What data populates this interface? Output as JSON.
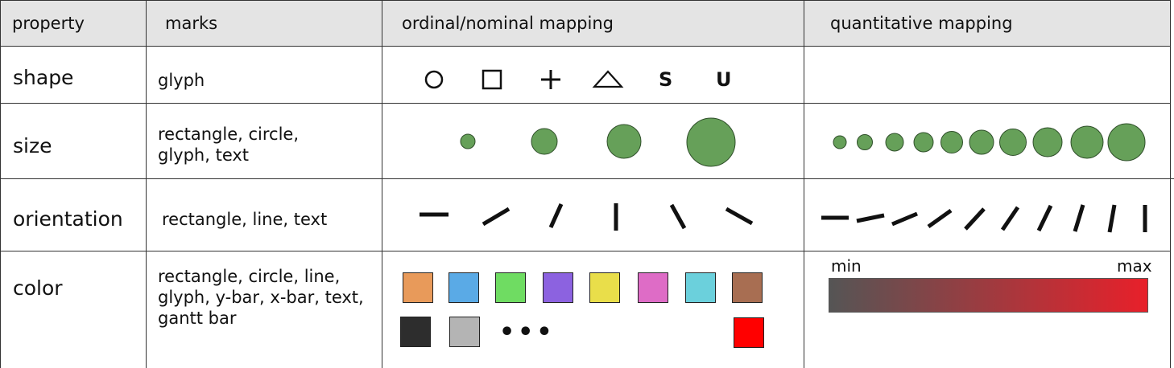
{
  "header": {
    "property": "property",
    "marks": "marks",
    "ordinal": "ordinal/nominal mapping",
    "quantitative": "quantitative mapping"
  },
  "rows": {
    "shape": {
      "property": "shape",
      "marks": "glyph",
      "ordinal_symbols": [
        "S",
        "U"
      ]
    },
    "size": {
      "property": "size",
      "marks": "rectangle, circle, glyph, text",
      "fill_color": "#66a059"
    },
    "orientation": {
      "property": "orientation",
      "marks": "rectangle, line, text"
    },
    "color": {
      "property": "color",
      "marks": "rectangle, circle, line, glyph, y-bar, x-bar, text, gantt bar",
      "ordinal_colors": [
        "#e89a5a",
        "#5aaae6",
        "#6fdc62",
        "#8c62e0",
        "#e9de4a",
        "#de6cc6",
        "#6bd0dc",
        "#a86e52",
        "#2d2d2d",
        "#b4b4b4",
        "#ff0000"
      ],
      "ellipsis": "•••",
      "gradient": {
        "min_label": "min",
        "max_label": "max",
        "from": "#555555",
        "to": "#e8202a"
      }
    }
  }
}
